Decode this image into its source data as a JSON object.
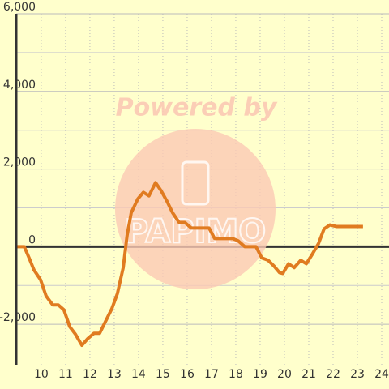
{
  "chart_data": {
    "type": "line",
    "watermark": "Powered by",
    "logo_text": "PAPIMO",
    "x": [
      9,
      9.3,
      9.5,
      9.7,
      9.97,
      10.2,
      10.47,
      10.7,
      10.93,
      11.17,
      11.4,
      11.67,
      11.9,
      12.17,
      12.4,
      12.63,
      12.9,
      13.13,
      13.37,
      13.53,
      13.7,
      13.97,
      14.2,
      14.43,
      14.7,
      14.93,
      15.17,
      15.4,
      15.67,
      15.9,
      16.17,
      16.4,
      16.63,
      16.9,
      17.13,
      17.37,
      17.63,
      17.87,
      18.1,
      18.37,
      18.6,
      18.83,
      19.07,
      19.33,
      19.57,
      19.8,
      19.93,
      20.17,
      20.4,
      20.67,
      20.9,
      21.13,
      21.4,
      21.63,
      21.87,
      22.13,
      22.37,
      22.63,
      22.87,
      23.23
    ],
    "series": [
      {
        "color": "#e07b20",
        "values": [
          0,
          0,
          -290,
          -600,
          -850,
          -1270,
          -1500,
          -1500,
          -1625,
          -2060,
          -2250,
          -2540,
          -2375,
          -2230,
          -2230,
          -1940,
          -1600,
          -1210,
          -540,
          290,
          875,
          1230,
          1400,
          1310,
          1650,
          1440,
          1170,
          875,
          625,
          625,
          480,
          480,
          480,
          480,
          210,
          210,
          210,
          210,
          150,
          0,
          0,
          0,
          -290,
          -350,
          -500,
          -670,
          -690,
          -440,
          -540,
          -350,
          -440,
          -210,
          80,
          460,
          560,
          520,
          520,
          520,
          520,
          520
        ]
      }
    ],
    "xlim": [
      8.97,
      24.3
    ],
    "xticks": [
      10,
      11,
      12,
      13,
      14,
      15,
      16,
      17,
      18,
      19,
      20,
      21,
      22,
      23,
      24
    ],
    "ylim": [
      -3040,
      6000
    ],
    "yticks": [
      {
        "value": 6000,
        "label": "6,000"
      },
      {
        "value": 4000,
        "label": "4,000"
      },
      {
        "value": 2000,
        "label": "2,000"
      },
      0,
      {
        "value": -2000,
        "label": "-2,000"
      }
    ],
    "y_minor_gridlines": [
      5000,
      3000,
      1000,
      -1000
    ],
    "grid": true
  }
}
